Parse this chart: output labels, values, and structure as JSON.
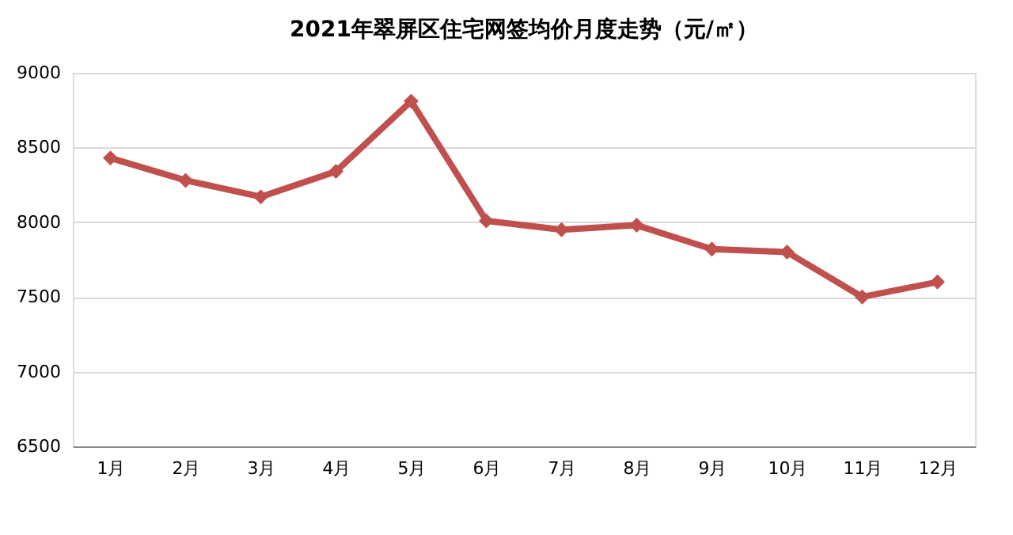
{
  "chart_data": {
    "type": "line",
    "title": "2021年翠屏区住宅网签均价月度走势（元/㎡）",
    "categories": [
      "1月",
      "2月",
      "3月",
      "4月",
      "5月",
      "6月",
      "7月",
      "8月",
      "9月",
      "10月",
      "11月",
      "12月"
    ],
    "series": [
      {
        "color": "#c0504d",
        "values": [
          8430,
          8280,
          8170,
          8340,
          8810,
          8010,
          7950,
          7980,
          7820,
          7800,
          7500,
          7600
        ]
      }
    ],
    "ylim": [
      6500,
      9000
    ],
    "yticks": [
      6500,
      7000,
      7500,
      8000,
      8500,
      9000
    ],
    "grid": "y",
    "marker": "diamond",
    "line_style": "solid"
  }
}
